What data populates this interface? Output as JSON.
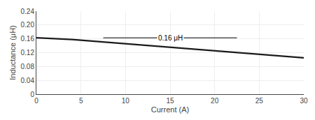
{
  "chart_data": {
    "type": "line",
    "xlabel": "Current (A)",
    "ylabel": "Inductance (μH)",
    "x": [
      0,
      1,
      2,
      3,
      4,
      5,
      6,
      7,
      8,
      9,
      10,
      11,
      12,
      13,
      14,
      15,
      16,
      17,
      18,
      19,
      20,
      21,
      22,
      23,
      24,
      25,
      26,
      27,
      28,
      29,
      30
    ],
    "values": [
      0.163,
      0.162,
      0.161,
      0.16,
      0.158,
      0.156,
      0.154,
      0.152,
      0.15,
      0.148,
      0.146,
      0.144,
      0.142,
      0.14,
      0.138,
      0.136,
      0.133,
      0.131,
      0.129,
      0.127,
      0.125,
      0.123,
      0.121,
      0.119,
      0.117,
      0.115,
      0.113,
      0.111,
      0.109,
      0.107,
      0.105
    ],
    "color": "#1a1a1a",
    "xlim": [
      0,
      30
    ],
    "ylim": [
      0,
      0.24
    ],
    "xticks": [
      0,
      5,
      10,
      15,
      20,
      25,
      30
    ],
    "yticks": [
      0,
      0.04,
      0.08,
      0.12,
      0.16,
      {
        "value": 0.2,
        "label": "0.20"
      },
      0.24
    ],
    "grid": true,
    "annotations": [
      {
        "text": "0.16 μH",
        "x": 15,
        "y": 0.163,
        "line": [
          7.5,
          22.5
        ]
      }
    ]
  }
}
